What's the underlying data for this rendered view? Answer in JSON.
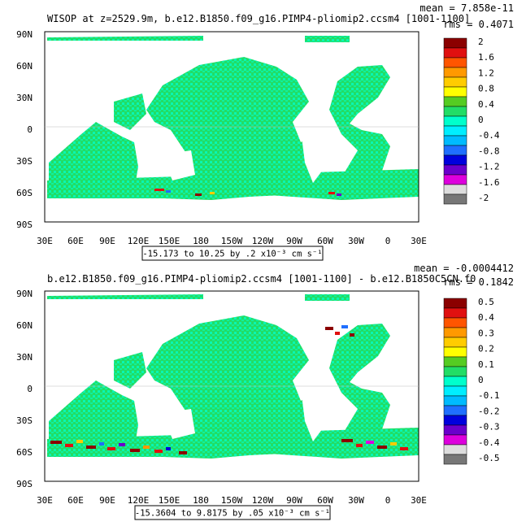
{
  "panels": [
    {
      "title": "WISOP at z=2529.9m, b.e12.B1850.f09_g16.PIMP4-pliomip2.ccsm4 [1001-1100]",
      "mean_label": "mean = 7.858e-11",
      "rms_label": "rms = 0.4071",
      "range_label": "-15.173 to 10.25 by .2 x10⁻³ cm s⁻¹",
      "colorbar_labels": [
        "2",
        "1.6",
        "1.2",
        "0.8",
        "0.4",
        "0",
        "-0.4",
        "-0.8",
        "-1.2",
        "-1.6",
        "-2"
      ]
    },
    {
      "title": "b.e12.B1850.f09_g16.PIMP4-pliomip2.ccsm4 [1001-1100] - b.e12.B1850C5CN.f0",
      "mean_label": "mean = -0.0004412",
      "rms_label": "rms = 0.1842",
      "range_label": "-15.3604 to 9.8175 by .05 x10⁻³ cm s⁻¹",
      "colorbar_labels": [
        "0.5",
        "0.4",
        "0.3",
        "0.2",
        "0.1",
        "0",
        "-0.1",
        "-0.2",
        "-0.3",
        "-0.4",
        "-0.5"
      ]
    }
  ],
  "lat_labels": [
    "90N",
    "60N",
    "30N",
    "0",
    "30S",
    "60S",
    "90S"
  ],
  "lon_labels": [
    "30E",
    "60E",
    "90E",
    "120E",
    "150E",
    "180",
    "150W",
    "120W",
    "90W",
    "60W",
    "30W",
    "0",
    "30E"
  ],
  "colorbar_colors": [
    "#8b0000",
    "#e01010",
    "#ff5500",
    "#ff9900",
    "#ffcc00",
    "#ffff00",
    "#55cc22",
    "#22dd66",
    "#00ffcc",
    "#00eeff",
    "#00bbff",
    "#1f6fff",
    "#0000dd",
    "#6a00cc",
    "#dd00dd",
    "#dddddd",
    "#777777"
  ],
  "land_color": "#ffffff",
  "ocean_colors": [
    "#22dd66",
    "#00ffcc"
  ]
}
